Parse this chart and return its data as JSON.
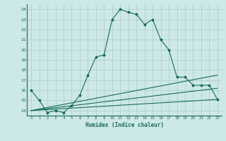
{
  "xlabel": "Humidex (Indice chaleur)",
  "bg_color": "#cce8e8",
  "grid_color": "#aacccc",
  "line_color": "#1a6b5a",
  "xlim": [
    -0.5,
    23.5
  ],
  "ylim": [
    13.5,
    24.5
  ],
  "yticks": [
    14,
    15,
    16,
    17,
    18,
    19,
    20,
    21,
    22,
    23,
    24
  ],
  "xticks": [
    0,
    1,
    2,
    3,
    4,
    5,
    6,
    7,
    8,
    9,
    10,
    11,
    12,
    13,
    14,
    15,
    16,
    17,
    18,
    19,
    20,
    21,
    22,
    23
  ],
  "series": [
    {
      "x": [
        0,
        1,
        2,
        3,
        4,
        5,
        6,
        7,
        8,
        9,
        10,
        11,
        12,
        13,
        14,
        15,
        16,
        17,
        18,
        19,
        20,
        21,
        22,
        23
      ],
      "y": [
        16.0,
        15.0,
        13.8,
        14.0,
        13.8,
        14.5,
        15.5,
        17.5,
        19.3,
        19.5,
        23.0,
        24.0,
        23.7,
        23.5,
        22.5,
        23.0,
        21.0,
        20.0,
        17.3,
        17.3,
        16.5,
        16.5,
        16.5,
        15.1
      ],
      "marker": true
    },
    {
      "x": [
        0,
        23
      ],
      "y": [
        14.0,
        17.5
      ],
      "marker": false
    },
    {
      "x": [
        0,
        23
      ],
      "y": [
        14.0,
        16.2
      ],
      "marker": false
    },
    {
      "x": [
        0,
        23
      ],
      "y": [
        14.0,
        15.1
      ],
      "marker": false
    }
  ]
}
